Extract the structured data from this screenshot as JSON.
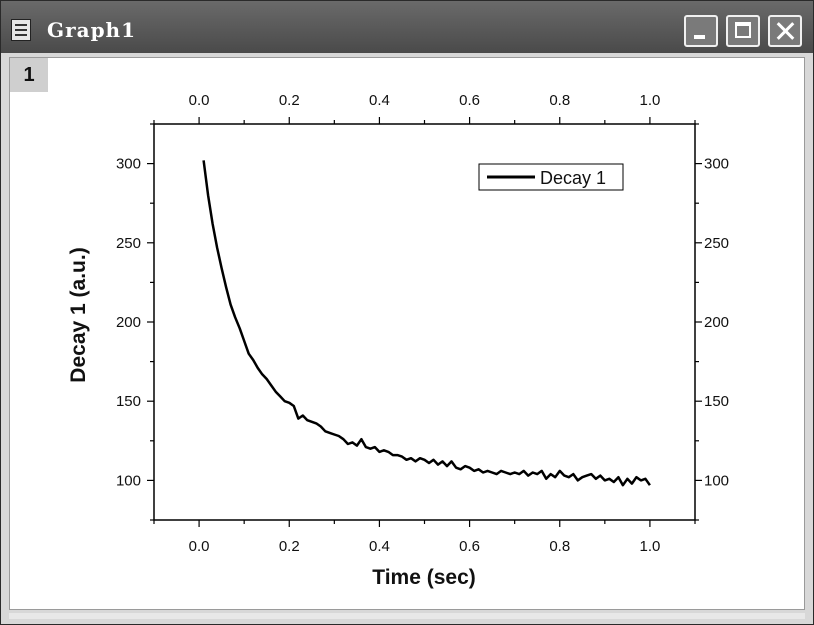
{
  "window": {
    "title": "Graph1",
    "layer_tab": "1"
  },
  "chart_data": {
    "type": "line",
    "title": "",
    "xlabel": "Time (sec)",
    "ylabel": "Decay 1 (a.u.)",
    "xlim": [
      -0.1,
      1.1
    ],
    "ylim": [
      75,
      325
    ],
    "x_ticks": [
      "0.0",
      "0.2",
      "0.4",
      "0.6",
      "0.8",
      "1.0"
    ],
    "y_ticks": [
      "100",
      "150",
      "200",
      "250",
      "300"
    ],
    "top_axis_ticks": [
      "0.0",
      "0.2",
      "0.4",
      "0.6",
      "0.8",
      "1.0"
    ],
    "right_axis_ticks": [
      "100",
      "150",
      "200",
      "250",
      "300"
    ],
    "grid": false,
    "legend": {
      "placement": "top-right",
      "entries": [
        "Decay 1"
      ]
    },
    "series": [
      {
        "name": "Decay 1",
        "color": "#000000",
        "x": [
          0.01,
          0.02,
          0.03,
          0.04,
          0.05,
          0.06,
          0.07,
          0.08,
          0.09,
          0.1,
          0.11,
          0.12,
          0.13,
          0.14,
          0.15,
          0.16,
          0.17,
          0.18,
          0.19,
          0.2,
          0.21,
          0.22,
          0.23,
          0.24,
          0.25,
          0.26,
          0.27,
          0.28,
          0.29,
          0.3,
          0.31,
          0.32,
          0.33,
          0.34,
          0.35,
          0.36,
          0.37,
          0.38,
          0.39,
          0.4,
          0.41,
          0.42,
          0.43,
          0.44,
          0.45,
          0.46,
          0.47,
          0.48,
          0.49,
          0.5,
          0.51,
          0.52,
          0.53,
          0.54,
          0.55,
          0.56,
          0.57,
          0.58,
          0.59,
          0.6,
          0.61,
          0.62,
          0.63,
          0.64,
          0.65,
          0.66,
          0.67,
          0.68,
          0.69,
          0.7,
          0.71,
          0.72,
          0.73,
          0.74,
          0.75,
          0.76,
          0.77,
          0.78,
          0.79,
          0.8,
          0.81,
          0.82,
          0.83,
          0.84,
          0.85,
          0.86,
          0.87,
          0.88,
          0.89,
          0.9,
          0.91,
          0.92,
          0.93,
          0.94,
          0.95,
          0.96,
          0.97,
          0.98,
          0.99,
          1.0
        ],
        "y": [
          302,
          280,
          262,
          247,
          234,
          222,
          211,
          203,
          196,
          188,
          180,
          176,
          171,
          167,
          164,
          160,
          156,
          153,
          150,
          149,
          147,
          139,
          141,
          138,
          137,
          136,
          134,
          131,
          130,
          129,
          128,
          126,
          123,
          124,
          122,
          126,
          121,
          120,
          121,
          118,
          119,
          118,
          116,
          116,
          115,
          113,
          114,
          112,
          114,
          113,
          111,
          113,
          110,
          112,
          109,
          112,
          108,
          107,
          109,
          108,
          106,
          107,
          105,
          106,
          105,
          104,
          106,
          105,
          104,
          105,
          104,
          106,
          103,
          105,
          104,
          106,
          101,
          104,
          102,
          106,
          103,
          102,
          104,
          100,
          102,
          103,
          104,
          101,
          103,
          100,
          101,
          99,
          102,
          97,
          101,
          98,
          102,
          100,
          101,
          97
        ]
      }
    ]
  }
}
